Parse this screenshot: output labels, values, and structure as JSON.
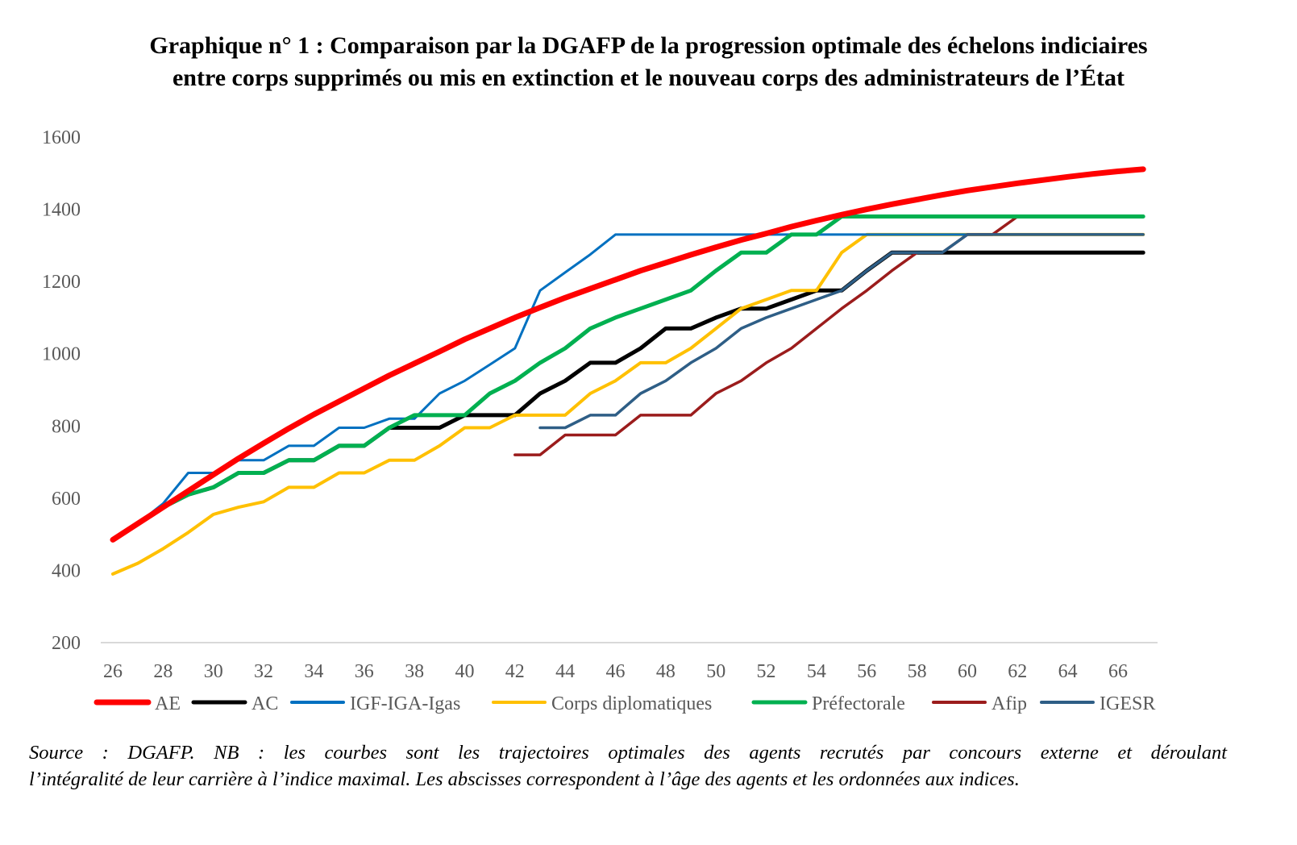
{
  "title_line1": "Graphique n° 1 : Comparaison par la DGAFP de la progression optimale des échelons indiciaires",
  "title_line2": "entre corps supprimés ou mis en extinction et le nouveau corps des administrateurs de l’État",
  "note_line1": "Source : DGAFP. NB : les courbes sont les trajectoires optimales des agents recrutés par concours externe et déroulant",
  "note_line2": "l’intégralité de leur carrière à l’indice maximal. Les abscisses correspondent à l’âge des agents et les ordonnées aux indices.",
  "chart_data": {
    "type": "line",
    "title": "",
    "xlabel": "",
    "ylabel": "",
    "xlim": [
      26,
      67
    ],
    "ylim": [
      200,
      1600
    ],
    "x_ticks": [
      26,
      28,
      30,
      32,
      34,
      36,
      38,
      40,
      42,
      44,
      46,
      48,
      50,
      52,
      54,
      56,
      58,
      60,
      62,
      64,
      66
    ],
    "y_ticks": [
      200,
      400,
      600,
      800,
      1000,
      1200,
      1400,
      1600
    ],
    "grid": false,
    "legend": "bottom",
    "series": [
      {
        "name": "AC",
        "color": "#000000",
        "width": 5,
        "x_start": 26,
        "values": [
          485,
          530,
          575,
          610,
          630,
          670,
          670,
          705,
          705,
          745,
          745,
          795,
          795,
          795,
          830,
          830,
          830,
          890,
          925,
          975,
          975,
          1015,
          1070,
          1070,
          1100,
          1125,
          1125,
          1150,
          1175,
          1175,
          1230,
          1280,
          1280,
          1280,
          1280,
          1280,
          1280,
          1280,
          1280,
          1280,
          1280,
          1280
        ]
      },
      {
        "name": "Corps diplomatiques",
        "color": "#FFC000",
        "width": 4,
        "x_start": 26,
        "values": [
          390,
          420,
          460,
          505,
          555,
          575,
          590,
          630,
          630,
          670,
          670,
          705,
          705,
          745,
          795,
          795,
          830,
          830,
          830,
          890,
          925,
          975,
          975,
          1015,
          1070,
          1125,
          1150,
          1175,
          1175,
          1280,
          1330,
          1330,
          1330,
          1330,
          1330,
          1330,
          1330,
          1330,
          1330,
          1330,
          1330,
          1330
        ]
      },
      {
        "name": "IGF-IGA-Igas",
        "color": "#0070C0",
        "width": 3,
        "x_start": 26,
        "values": [
          485,
          530,
          585,
          670,
          670,
          705,
          705,
          745,
          745,
          795,
          795,
          820,
          820,
          890,
          925,
          970,
          1015,
          1175,
          1225,
          1275,
          1330,
          1330,
          1330,
          1330,
          1330,
          1330,
          1330,
          1330,
          1330,
          1330,
          1330,
          1330,
          1330,
          1330,
          1330,
          1330,
          1330,
          1330,
          1330,
          1330,
          1330,
          1330
        ]
      },
      {
        "name": "Afip",
        "color": "#9B1C1C",
        "width": 3.5,
        "x_start": 42,
        "values": [
          720,
          720,
          775,
          775,
          775,
          830,
          830,
          830,
          890,
          925,
          975,
          1015,
          1070,
          1125,
          1175,
          1230,
          1280,
          1280,
          1330,
          1330,
          1380,
          1380,
          1380,
          1380,
          1380,
          1380
        ]
      },
      {
        "name": "IGESR",
        "color": "#2E5E86",
        "width": 3.5,
        "x_start": 43,
        "values": [
          795,
          795,
          830,
          830,
          890,
          925,
          975,
          1015,
          1070,
          1100,
          1125,
          1150,
          1175,
          1230,
          1280,
          1280,
          1280,
          1330,
          1330,
          1330,
          1330,
          1330,
          1330,
          1330,
          1330
        ]
      },
      {
        "name": "Préfectorale",
        "color": "#00B050",
        "width": 5,
        "x_start": 26,
        "values": [
          485,
          530,
          575,
          610,
          630,
          670,
          670,
          705,
          705,
          745,
          745,
          795,
          830,
          830,
          830,
          890,
          925,
          975,
          1015,
          1070,
          1100,
          1125,
          1150,
          1175,
          1230,
          1280,
          1280,
          1330,
          1330,
          1380,
          1380,
          1380,
          1380,
          1380,
          1380,
          1380,
          1380,
          1380,
          1380,
          1380,
          1380,
          1380
        ]
      },
      {
        "name": "AE",
        "color": "#FF0000",
        "width": 7,
        "x_start": 26,
        "values": [
          485,
          530,
          575,
          620,
          665,
          710,
          752,
          793,
          832,
          868,
          904,
          940,
          973,
          1006,
          1040,
          1070,
          1100,
          1128,
          1155,
          1180,
          1205,
          1230,
          1252,
          1274,
          1295,
          1315,
          1333,
          1352,
          1369,
          1385,
          1400,
          1414,
          1427,
          1440,
          1452,
          1462,
          1472,
          1481,
          1490,
          1498,
          1505,
          1511
        ]
      }
    ],
    "legend_order": [
      "AE",
      "AC",
      "IGF-IGA-Igas",
      "Corps diplomatiques",
      "Préfectorale",
      "Afip",
      "IGESR"
    ]
  }
}
